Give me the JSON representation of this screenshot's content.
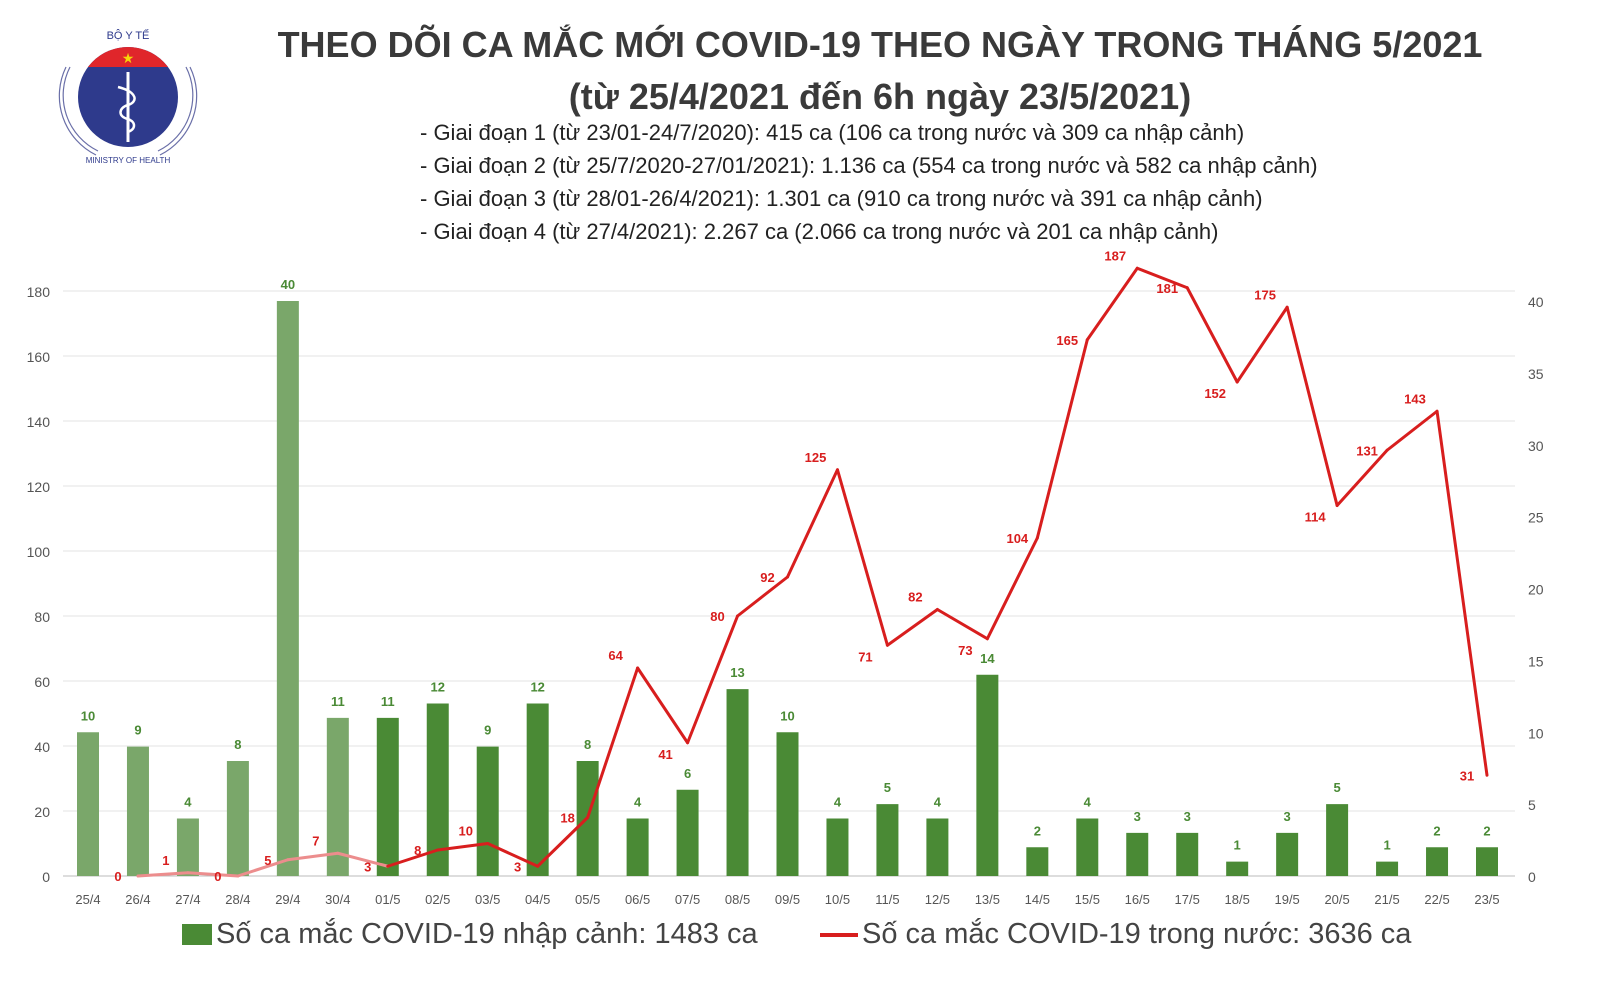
{
  "header": {
    "title": "THEO DÕI CA MẮC MỚI COVID-19 THEO NGÀY TRONG THÁNG 5/2021",
    "subtitle": "(từ 25/4/2021 đến 6h ngày 23/5/2021)",
    "phases": [
      "- Giai đoạn 1 (từ 23/01-24/7/2020): 415 ca (106 ca trong nước và 309 ca nhập cảnh)",
      "- Giai đoạn 2 (từ 25/7/2020-27/01/2021): 1.136 ca (554 ca trong nước và 582 ca nhập cảnh)",
      "- Giai đoạn 3 (từ 28/01-26/4/2021): 1.301 ca (910 ca trong nước và 391 ca nhập cảnh)",
      "- Giai đoạn 4 (từ 27/4/2021): 2.267 ca (2.066 ca trong nước và 201 ca nhập cảnh)"
    ]
  },
  "logo": {
    "top_text": "BỘ Y TẾ",
    "bottom_text": "MINISTRY OF HEALTH"
  },
  "chart_data": {
    "type": "bar+line",
    "categories": [
      "25/4",
      "26/4",
      "27/4",
      "28/4",
      "29/4",
      "30/4",
      "01/5",
      "02/5",
      "03/5",
      "04/5",
      "05/5",
      "06/5",
      "07/5",
      "08/5",
      "09/5",
      "10/5",
      "11/5",
      "12/5",
      "13/5",
      "14/5",
      "15/5",
      "16/5",
      "17/5",
      "18/5",
      "19/5",
      "20/5",
      "21/5",
      "22/5",
      "23/5"
    ],
    "series": [
      {
        "name": "Số ca mắc COVID-19 nhập cảnh: 1483 ca",
        "type": "bar",
        "axis": "right",
        "color": "#4a8a35",
        "faded_color": "#7aa76a",
        "values": [
          10,
          9,
          4,
          8,
          40,
          11,
          11,
          12,
          9,
          12,
          8,
          4,
          6,
          13,
          10,
          4,
          5,
          4,
          14,
          2,
          4,
          3,
          3,
          1,
          3,
          5,
          1,
          2,
          2
        ]
      },
      {
        "name": "Số ca mắc COVID-19 trong nước: 3636 ca",
        "type": "line",
        "axis": "left",
        "color": "#d81e1e",
        "faded_color": "#ec8d8d",
        "values": [
          null,
          0,
          1,
          0,
          5,
          7,
          3,
          8,
          10,
          3,
          18,
          64,
          41,
          80,
          92,
          125,
          71,
          82,
          73,
          104,
          165,
          187,
          181,
          152,
          175,
          114,
          131,
          143,
          31
        ]
      }
    ],
    "faded_until": "01/5",
    "left_axis": {
      "ylim": [
        0,
        180
      ],
      "ticks": [
        0,
        20,
        40,
        60,
        80,
        100,
        120,
        140,
        160,
        180
      ]
    },
    "right_axis": {
      "ylim": [
        0,
        40
      ],
      "ticks": [
        0,
        5,
        10,
        15,
        20,
        25,
        30,
        35,
        40
      ]
    },
    "grid": true,
    "legend": "bottom"
  }
}
